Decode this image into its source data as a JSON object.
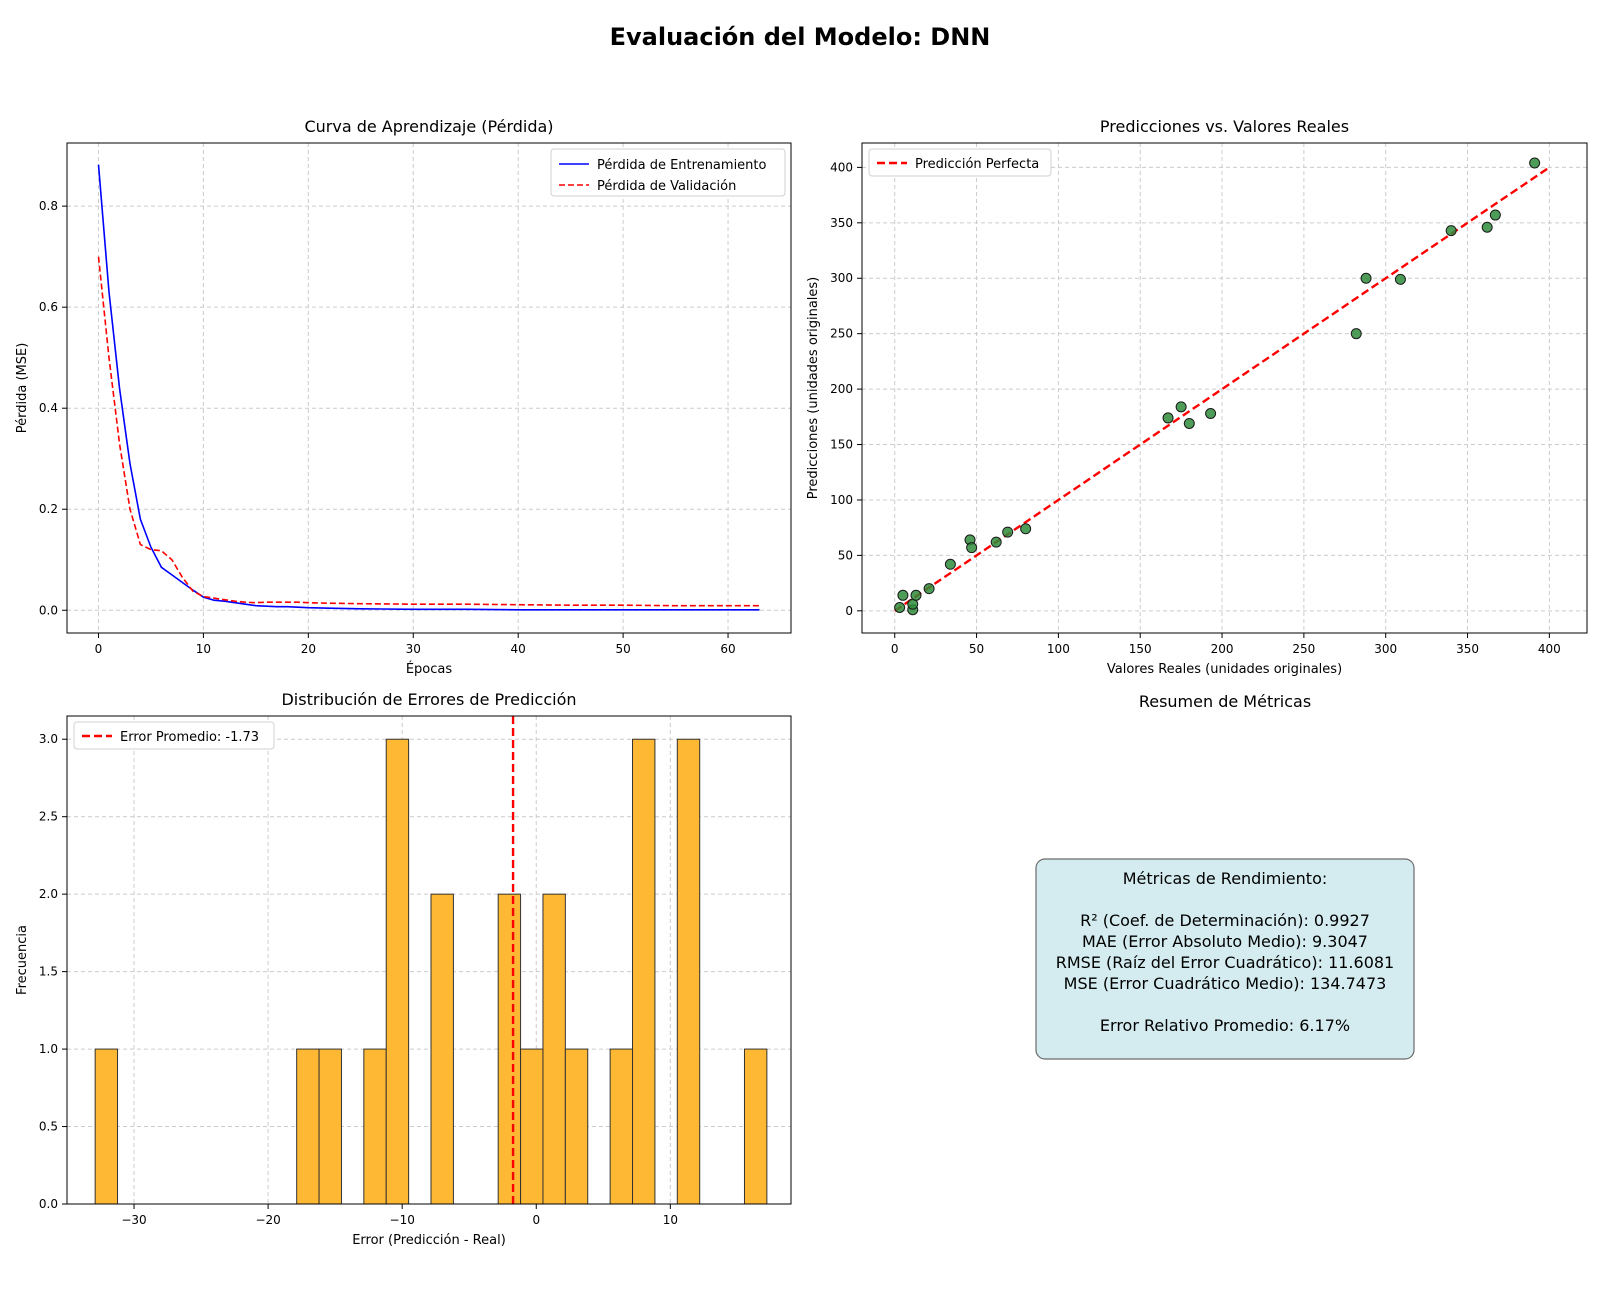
{
  "figure": {
    "title": "Evaluación del Modelo: DNN"
  },
  "colors": {
    "train": "#0000ff",
    "val": "#ff0000",
    "scatter": "#2e8b3a",
    "hist": "#ffb833",
    "box": "#d4ecf0",
    "grid": "#cccccc"
  },
  "chart_data": [
    {
      "type": "line",
      "title": "Curva de Aprendizaje (Pérdida)",
      "xlabel": "Épocas",
      "ylabel": "Pérdida (MSE)",
      "xlim": [
        -3,
        66
      ],
      "ylim": [
        -0.045,
        0.925
      ],
      "xticks": [
        0,
        10,
        20,
        30,
        40,
        50,
        60
      ],
      "yticks": [
        0.0,
        0.2,
        0.4,
        0.6,
        0.8
      ],
      "legend": "top-right",
      "grid": true,
      "series": [
        {
          "name": "Pérdida de Entrenamiento",
          "style": "solid",
          "x": [
            0,
            1,
            2,
            3,
            4,
            5,
            6,
            7,
            8,
            9,
            10,
            11,
            12,
            13,
            14,
            15,
            16,
            17,
            18,
            19,
            20,
            22,
            25,
            30,
            35,
            40,
            45,
            50,
            55,
            60,
            63
          ],
          "y": [
            0.882,
            0.63,
            0.44,
            0.29,
            0.18,
            0.125,
            0.085,
            0.07,
            0.055,
            0.04,
            0.026,
            0.02,
            0.018,
            0.015,
            0.012,
            0.009,
            0.008,
            0.007,
            0.007,
            0.006,
            0.005,
            0.004,
            0.003,
            0.002,
            0.002,
            0.001,
            0.001,
            0.001,
            0.001,
            0.001,
            0.001
          ]
        },
        {
          "name": "Pérdida de Validación",
          "style": "dashed",
          "x": [
            0,
            1,
            2,
            3,
            4,
            5,
            6,
            7,
            8,
            9,
            10,
            11,
            12,
            13,
            14,
            15,
            16,
            17,
            18,
            19,
            20,
            22,
            25,
            30,
            35,
            40,
            45,
            50,
            55,
            60,
            63
          ],
          "y": [
            0.7,
            0.5,
            0.33,
            0.2,
            0.13,
            0.12,
            0.118,
            0.1,
            0.065,
            0.038,
            0.027,
            0.024,
            0.021,
            0.018,
            0.016,
            0.015,
            0.016,
            0.016,
            0.016,
            0.016,
            0.015,
            0.014,
            0.013,
            0.012,
            0.012,
            0.011,
            0.01,
            0.01,
            0.009,
            0.009,
            0.009
          ]
        }
      ]
    },
    {
      "type": "scatter",
      "title": "Predicciones vs. Valores Reales",
      "xlabel": "Valores Reales (unidades originales)",
      "ylabel": "Predicciones (unidades originales)",
      "xlim": [
        -20,
        423
      ],
      "ylim": [
        -20,
        422
      ],
      "xticks": [
        0,
        50,
        100,
        150,
        200,
        250,
        300,
        350,
        400
      ],
      "yticks": [
        0,
        50,
        100,
        150,
        200,
        250,
        300,
        350,
        400
      ],
      "legend": "top-left",
      "grid": true,
      "reference_line": {
        "name": "Predicción Perfecta",
        "x": [
          0,
          400
        ],
        "y": [
          0,
          400
        ]
      },
      "points": [
        [
          3,
          3
        ],
        [
          5,
          14
        ],
        [
          11,
          1
        ],
        [
          11,
          6
        ],
        [
          13,
          14
        ],
        [
          21,
          20
        ],
        [
          34,
          42
        ],
        [
          46,
          64
        ],
        [
          47,
          57
        ],
        [
          62,
          62
        ],
        [
          69,
          71
        ],
        [
          80,
          74
        ],
        [
          167,
          174
        ],
        [
          175,
          184
        ],
        [
          180,
          169
        ],
        [
          193,
          178
        ],
        [
          282,
          250
        ],
        [
          288,
          300
        ],
        [
          309,
          299
        ],
        [
          340,
          343
        ],
        [
          362,
          346
        ],
        [
          367,
          357
        ],
        [
          391,
          404
        ]
      ]
    },
    {
      "type": "bar",
      "title": "Distribución de Errores de Predicción",
      "xlabel": "Error (Predicción - Real)",
      "ylabel": "Frecuencia",
      "xlim": [
        -35,
        19
      ],
      "ylim": [
        0,
        3.15
      ],
      "xticks": [
        -30,
        -20,
        -10,
        0,
        10
      ],
      "yticks": [
        0.0,
        0.5,
        1.0,
        1.5,
        2.0,
        2.5,
        3.0
      ],
      "legend": "top-left",
      "grid": true,
      "bin_edges": [
        -32.9,
        -31.23,
        -29.56,
        -27.89,
        -26.22,
        -24.55,
        -22.88,
        -21.21,
        -19.54,
        -17.87,
        -16.2,
        -14.53,
        -12.86,
        -11.19,
        -9.52,
        -7.85,
        -6.18,
        -4.51,
        -2.84,
        -1.17,
        0.5,
        2.17,
        3.84,
        5.51,
        7.18,
        8.85,
        10.52,
        12.19,
        13.86,
        15.53,
        17.2
      ],
      "counts": [
        1,
        0,
        0,
        0,
        0,
        0,
        0,
        0,
        0,
        1,
        1,
        0,
        1,
        3,
        0,
        2,
        0,
        0,
        2,
        1,
        2,
        1,
        0,
        1,
        3,
        0,
        3,
        0,
        0,
        1
      ],
      "mean_line": {
        "name": "Error Promedio: -1.73",
        "x": -1.73
      }
    },
    {
      "type": "table",
      "title": "Resumen de Métricas",
      "lines": [
        "Métricas de Rendimiento:",
        "",
        "R² (Coef. de Determinación): 0.9927",
        "MAE (Error Absoluto Medio): 9.3047",
        "RMSE (Raíz del Error Cuadrático): 11.6081",
        "MSE (Error Cuadrático Medio): 134.7473",
        "",
        "Error Relativo Promedio: 6.17%"
      ]
    }
  ]
}
